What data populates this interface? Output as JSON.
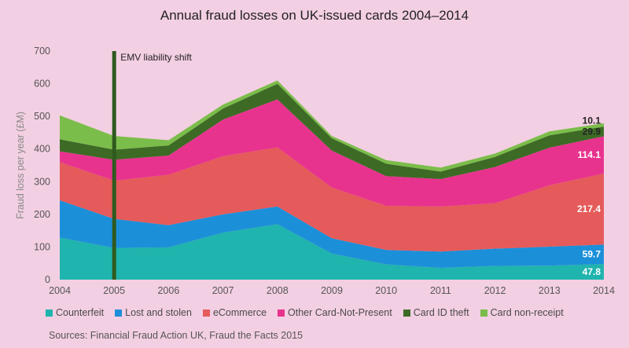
{
  "chart_data": {
    "type": "area",
    "stacked": true,
    "title": "Annual fraud losses on UK-issued cards 2004–2014",
    "ylabel": "Fraud loss per year (£M)",
    "xlabel": "",
    "x": [
      2004,
      2005,
      2006,
      2007,
      2008,
      2009,
      2010,
      2011,
      2012,
      2013,
      2014
    ],
    "ylim": [
      0,
      700
    ],
    "yticks": [
      0,
      100,
      200,
      300,
      400,
      500,
      600,
      700
    ],
    "grid": false,
    "legend_position": "bottom",
    "series": [
      {
        "name": "Counterfeit",
        "color": "#1fb4ad",
        "values": [
          129,
          97,
          99,
          144,
          170,
          80,
          47,
          36,
          42,
          43,
          47.8
        ]
      },
      {
        "name": "Lost and stolen",
        "color": "#1c8fd9",
        "values": [
          114,
          89,
          68,
          56,
          54,
          47,
          44,
          50,
          53,
          58,
          59.7
        ]
      },
      {
        "name": "eCommerce",
        "color": "#e55a5a",
        "values": [
          117,
          117,
          154,
          178,
          181,
          155,
          135,
          138,
          139,
          188,
          217.4
        ]
      },
      {
        "name": "Other Card-Not-Present",
        "color": "#e8338e",
        "values": [
          33,
          64,
          59,
          112,
          147,
          113,
          91,
          84,
          111,
          115,
          114.1
        ]
      },
      {
        "name": "Card ID theft",
        "color": "#3d6b25",
        "values": [
          37,
          31,
          31,
          34,
          48,
          38,
          38,
          23,
          31,
          38,
          29.9
        ]
      },
      {
        "name": "Card non-receipt",
        "color": "#7bbd4a",
        "values": [
          73,
          42,
          16,
          12,
          10,
          7,
          11,
          12,
          10,
          12,
          10.1
        ]
      }
    ],
    "data_labels": [
      "47.8",
      "59.7",
      "217.4",
      "114.1",
      "29.9",
      "10.1"
    ],
    "annotation": {
      "x": 2005,
      "label": "EMV liability shift",
      "color": "#2f5a1f"
    },
    "source": "Sources: Financial Fraud Action UK, Fraud the Facts 2015"
  }
}
